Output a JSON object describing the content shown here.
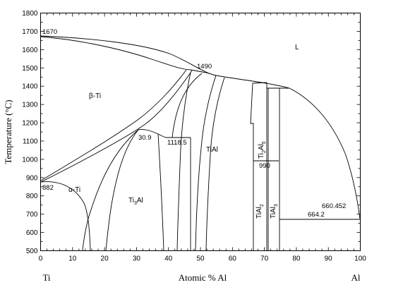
{
  "axes": {
    "y_title": "Temperature (°C)",
    "x_title": "Atomic % Al",
    "x_left_element": "Ti",
    "x_right_element": "Al",
    "x_range": [
      0,
      100
    ],
    "y_range": [
      500,
      1800
    ],
    "x_ticks": [
      "0",
      "10",
      "20",
      "30",
      "40",
      "50",
      "60",
      "70",
      "80",
      "90",
      "100"
    ],
    "y_ticks": [
      "500",
      "600",
      "700",
      "800",
      "900",
      "1000",
      "1100",
      "1200",
      "1300",
      "1400",
      "1500",
      "1600",
      "1700",
      "1800"
    ]
  },
  "phases": {
    "beta_ti": "β-Ti",
    "alpha_ti": "α-Ti",
    "ti3al": "Ti3Al",
    "tial": "TiAl",
    "ti2al5": "Ti2Al5",
    "tial2": "TiAl2",
    "tial3": "TiAl3",
    "liquid": "L"
  },
  "temperatures": {
    "ti_melting": "1670",
    "peritectic": "1490",
    "alpha_beta_transition": "882",
    "eutectoid": "1118.5",
    "congruent_point": "30.9",
    "ti2al5_decomposition": "990",
    "al_melting": "660.452",
    "tial3_eutectic": "664.2"
  }
}
